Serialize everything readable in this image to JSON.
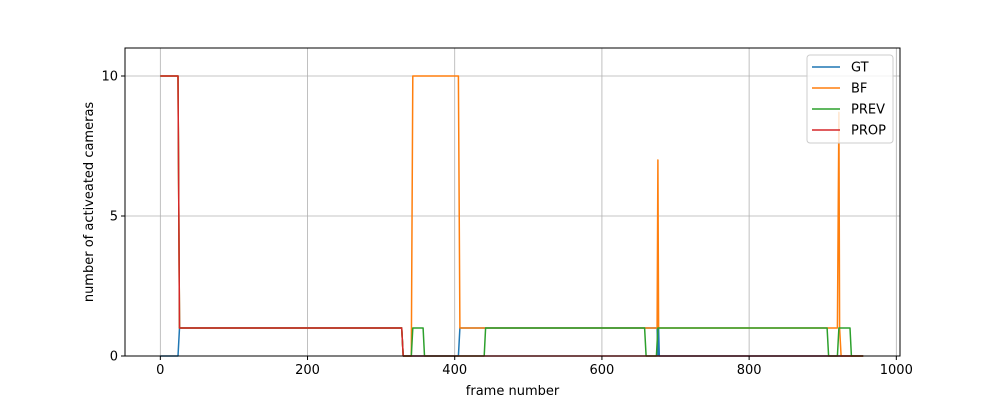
{
  "chart_data": {
    "type": "line",
    "title": "",
    "xlabel": "frame number",
    "ylabel": "number of activeated cameras",
    "xlim": [
      -48,
      1005
    ],
    "ylim": [
      0,
      11
    ],
    "x_ticks": [
      0,
      200,
      400,
      600,
      800,
      1000
    ],
    "y_ticks": [
      0,
      5,
      10
    ],
    "x_tick_labels": [
      "0",
      "200",
      "400",
      "600",
      "800",
      "1000"
    ],
    "y_tick_labels": [
      "0",
      "5",
      "10"
    ],
    "grid": true,
    "legend_position": "top-right",
    "series": [
      {
        "name": "GT",
        "color": "#1f77b4",
        "points": [
          [
            0,
            0
          ],
          [
            24,
            0
          ],
          [
            26,
            1
          ],
          [
            328,
            1
          ],
          [
            330,
            0
          ],
          [
            405,
            0
          ],
          [
            407,
            1
          ],
          [
            675,
            1
          ],
          [
            676,
            0
          ],
          [
            677,
            1
          ],
          [
            678,
            0
          ],
          [
            955,
            0
          ]
        ]
      },
      {
        "name": "BF",
        "color": "#ff7f0e",
        "points": [
          [
            0,
            10
          ],
          [
            24,
            10
          ],
          [
            26,
            1
          ],
          [
            328,
            1
          ],
          [
            330,
            0
          ],
          [
            341,
            0
          ],
          [
            343,
            10
          ],
          [
            405,
            10
          ],
          [
            407,
            1
          ],
          [
            675,
            1
          ],
          [
            676,
            7
          ],
          [
            677,
            1
          ],
          [
            920,
            1
          ],
          [
            922,
            8.7
          ],
          [
            923,
            1
          ],
          [
            925,
            0
          ],
          [
            955,
            0
          ]
        ]
      },
      {
        "name": "PREV",
        "color": "#2ca02c",
        "points": [
          [
            0,
            10
          ],
          [
            24,
            10
          ],
          [
            26,
            1
          ],
          [
            328,
            1
          ],
          [
            330,
            0
          ],
          [
            341,
            0
          ],
          [
            343,
            1
          ],
          [
            357,
            1
          ],
          [
            359,
            0
          ],
          [
            440,
            0
          ],
          [
            442,
            1
          ],
          [
            658,
            1
          ],
          [
            660,
            0
          ],
          [
            674,
            0
          ],
          [
            676,
            1
          ],
          [
            906,
            1
          ],
          [
            908,
            0
          ],
          [
            920,
            0
          ],
          [
            922,
            1
          ],
          [
            937,
            1
          ],
          [
            939,
            0
          ],
          [
            955,
            0
          ]
        ]
      },
      {
        "name": "PROP",
        "color": "#d62728",
        "points": [
          [
            0,
            10
          ],
          [
            24,
            10
          ],
          [
            26,
            1
          ],
          [
            328,
            1
          ],
          [
            330,
            0
          ],
          [
            955,
            0
          ]
        ]
      }
    ]
  }
}
